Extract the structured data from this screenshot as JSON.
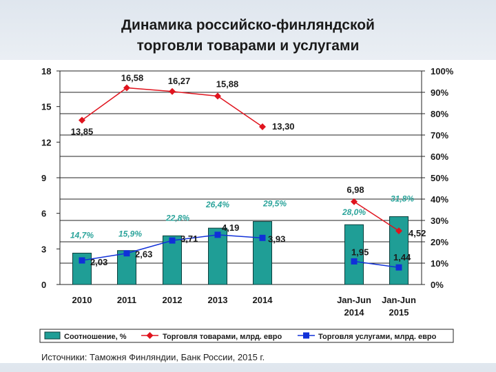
{
  "title_line1": "Динамика российско-финляндской",
  "title_line2": "торговли товарами и услугами",
  "source": "Источники: Таможня Финляндии, Банк России, 2015 г.",
  "colors": {
    "bar": "#1f9e96",
    "bar_edge": "#0b3c3a",
    "goods": "#e0141e",
    "services": "#1030d8",
    "ratio_label": "#2aa39a"
  },
  "chart_data": {
    "type": "bar+line",
    "categories": [
      "2010",
      "2011",
      "2012",
      "2013",
      "2014",
      "Jan-Jun 2014",
      "Jan-Jun 2015"
    ],
    "category_lines": [
      [
        "2010"
      ],
      [
        "2011"
      ],
      [
        "2012"
      ],
      [
        "2013"
      ],
      [
        "2014"
      ],
      [
        "Jan-Jun",
        "2014"
      ],
      [
        "Jan-Jun",
        "2015"
      ]
    ],
    "ylim_left": [
      0,
      18
    ],
    "yticks_left": [
      "0",
      "3",
      "6",
      "9",
      "12",
      "15",
      "18"
    ],
    "ylim_right": [
      0,
      100
    ],
    "yticks_right": [
      "0%",
      "10%",
      "20%",
      "30%",
      "40%",
      "50%",
      "60%",
      "70%",
      "80%",
      "90%",
      "100%"
    ],
    "series": [
      {
        "name": "Соотношение, %",
        "type": "bar",
        "axis": "right",
        "values": [
          14.7,
          15.9,
          22.8,
          26.4,
          29.5,
          28.0,
          31.8
        ],
        "labels": [
          "14,7%",
          "15,9%",
          "22,8%",
          "26,4%",
          "29,5%",
          "28,0%",
          "31,8%"
        ]
      },
      {
        "name": "Торговля товарами, млрд. евро",
        "type": "line",
        "axis": "left",
        "values": [
          13.85,
          16.58,
          16.27,
          15.88,
          13.3,
          6.98,
          4.52
        ],
        "labels": [
          "13,85",
          "16,58",
          "16,27",
          "15,88",
          "13,30",
          "6,98",
          "4,52"
        ]
      },
      {
        "name": "Торговля услугами, млрд. евро",
        "type": "line",
        "axis": "left",
        "values": [
          2.03,
          2.63,
          3.71,
          4.19,
          3.93,
          1.95,
          1.44
        ],
        "labels": [
          "2,03",
          "2,63",
          "3,71",
          "4,19",
          "3,93",
          "1,95",
          "1,44"
        ]
      }
    ]
  }
}
